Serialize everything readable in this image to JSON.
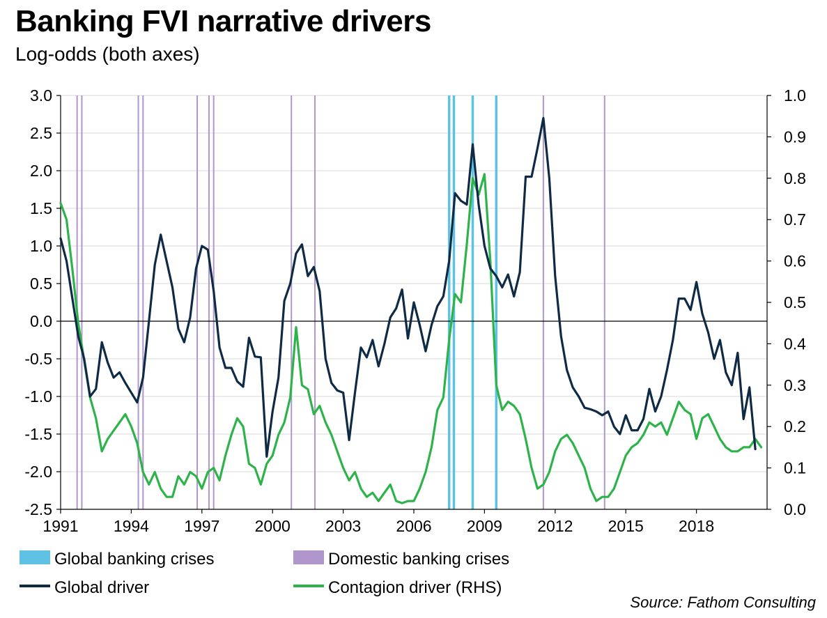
{
  "chart_data": {
    "type": "line",
    "title": "Banking FVI narrative drivers",
    "subtitle": "Log-odds (both axes)",
    "source": "Source: Fathom Consulting",
    "xlabel": "",
    "ylabel": "",
    "y_left": {
      "range": [
        -2.5,
        3.0
      ],
      "ticks": [
        "3.0",
        "2.5",
        "2.0",
        "1.5",
        "1.0",
        "0.5",
        "0.0",
        "-0.5",
        "-1.0",
        "-1.5",
        "-2.0",
        "-2.5"
      ]
    },
    "y_right": {
      "range": [
        0.0,
        1.0
      ],
      "ticks": [
        "1.0",
        "0.9",
        "0.8",
        "0.7",
        "0.6",
        "0.5",
        "0.4",
        "0.3",
        "0.2",
        "0.1",
        "0.0"
      ]
    },
    "x_range": [
      1991.0,
      2021.0
    ],
    "x_ticks": [
      "1991",
      "1994",
      "1997",
      "2000",
      "2003",
      "2006",
      "2009",
      "2012",
      "2015",
      "2018"
    ],
    "grid": "horizontal",
    "legend_position": "bottom",
    "colors": {
      "global_driver": "#0f2a44",
      "contagion_driver": "#2db34a",
      "global_crises": "#5ec2e4",
      "domestic_crises": "#b196cc",
      "grid": "#d9d9d9"
    },
    "legend": {
      "global_crises": "Global banking crises",
      "domestic_crises": "Domestic banking crises",
      "global_driver": "Global driver",
      "contagion_driver": "Contagion driver (RHS)"
    },
    "global_crises": [
      2007.5,
      2007.7,
      2008.5,
      2009.5
    ],
    "domestic_crises": [
      1991.7,
      1991.9,
      1994.3,
      1994.5,
      1996.8,
      1997.3,
      1997.5,
      2000.8,
      2001.8,
      2011.5,
      2014.1
    ],
    "series": [
      {
        "name": "Global driver",
        "axis": "left",
        "points": [
          [
            1991.0,
            1.1
          ],
          [
            1991.25,
            0.8
          ],
          [
            1991.5,
            0.3
          ],
          [
            1991.75,
            -0.2
          ],
          [
            1992.0,
            -0.5
          ],
          [
            1992.25,
            -1.0
          ],
          [
            1992.5,
            -0.9
          ],
          [
            1992.75,
            -0.28
          ],
          [
            1993.0,
            -0.55
          ],
          [
            1993.25,
            -0.75
          ],
          [
            1993.5,
            -0.68
          ],
          [
            1993.75,
            -0.82
          ],
          [
            1994.0,
            -0.95
          ],
          [
            1994.25,
            -1.08
          ],
          [
            1994.5,
            -0.75
          ],
          [
            1994.75,
            0.0
          ],
          [
            1995.0,
            0.75
          ],
          [
            1995.25,
            1.15
          ],
          [
            1995.5,
            0.8
          ],
          [
            1995.75,
            0.45
          ],
          [
            1996.0,
            -0.1
          ],
          [
            1996.25,
            -0.28
          ],
          [
            1996.5,
            0.05
          ],
          [
            1996.75,
            0.7
          ],
          [
            1997.0,
            1.0
          ],
          [
            1997.25,
            0.95
          ],
          [
            1997.5,
            0.4
          ],
          [
            1997.75,
            -0.35
          ],
          [
            1998.0,
            -0.62
          ],
          [
            1998.25,
            -0.62
          ],
          [
            1998.5,
            -0.8
          ],
          [
            1998.75,
            -0.87
          ],
          [
            1999.0,
            -0.22
          ],
          [
            1999.25,
            -0.47
          ],
          [
            1999.5,
            -0.48
          ],
          [
            1999.75,
            -1.8
          ],
          [
            2000.0,
            -1.2
          ],
          [
            2000.25,
            -0.75
          ],
          [
            2000.5,
            0.27
          ],
          [
            2000.75,
            0.5
          ],
          [
            2001.0,
            0.9
          ],
          [
            2001.25,
            1.02
          ],
          [
            2001.5,
            0.6
          ],
          [
            2001.75,
            0.72
          ],
          [
            2002.0,
            0.4
          ],
          [
            2002.25,
            -0.5
          ],
          [
            2002.5,
            -0.82
          ],
          [
            2002.75,
            -0.92
          ],
          [
            2003.0,
            -0.95
          ],
          [
            2003.25,
            -1.58
          ],
          [
            2003.5,
            -0.95
          ],
          [
            2003.75,
            -0.35
          ],
          [
            2004.0,
            -0.48
          ],
          [
            2004.25,
            -0.25
          ],
          [
            2004.5,
            -0.6
          ],
          [
            2004.75,
            -0.3
          ],
          [
            2005.0,
            0.05
          ],
          [
            2005.25,
            0.17
          ],
          [
            2005.5,
            0.42
          ],
          [
            2005.75,
            -0.23
          ],
          [
            2006.0,
            0.25
          ],
          [
            2006.25,
            -0.05
          ],
          [
            2006.5,
            -0.4
          ],
          [
            2006.75,
            -0.05
          ],
          [
            2007.0,
            0.2
          ],
          [
            2007.25,
            0.33
          ],
          [
            2007.5,
            0.8
          ],
          [
            2007.75,
            1.7
          ],
          [
            2008.0,
            1.6
          ],
          [
            2008.25,
            1.55
          ],
          [
            2008.5,
            2.35
          ],
          [
            2008.75,
            1.55
          ],
          [
            2009.0,
            1.0
          ],
          [
            2009.25,
            0.7
          ],
          [
            2009.5,
            0.6
          ],
          [
            2009.75,
            0.45
          ],
          [
            2010.0,
            0.62
          ],
          [
            2010.25,
            0.33
          ],
          [
            2010.5,
            0.65
          ],
          [
            2010.75,
            1.92
          ],
          [
            2011.0,
            1.92
          ],
          [
            2011.25,
            2.3
          ],
          [
            2011.5,
            2.7
          ],
          [
            2011.75,
            1.9
          ],
          [
            2012.0,
            0.6
          ],
          [
            2012.25,
            -0.2
          ],
          [
            2012.5,
            -0.65
          ],
          [
            2012.75,
            -0.88
          ],
          [
            2013.0,
            -1.0
          ],
          [
            2013.25,
            -1.15
          ],
          [
            2013.5,
            -1.17
          ],
          [
            2013.75,
            -1.2
          ],
          [
            2014.0,
            -1.25
          ],
          [
            2014.25,
            -1.2
          ],
          [
            2014.5,
            -1.4
          ],
          [
            2014.75,
            -1.5
          ],
          [
            2015.0,
            -1.25
          ],
          [
            2015.25,
            -1.45
          ],
          [
            2015.5,
            -1.45
          ],
          [
            2015.75,
            -1.3
          ],
          [
            2016.0,
            -0.9
          ],
          [
            2016.25,
            -1.2
          ],
          [
            2016.5,
            -1.0
          ],
          [
            2016.75,
            -0.65
          ],
          [
            2017.0,
            -0.25
          ],
          [
            2017.25,
            0.3
          ],
          [
            2017.5,
            0.3
          ],
          [
            2017.75,
            0.15
          ],
          [
            2018.0,
            0.52
          ],
          [
            2018.25,
            0.1
          ],
          [
            2018.5,
            -0.15
          ],
          [
            2018.75,
            -0.5
          ],
          [
            2019.0,
            -0.25
          ],
          [
            2019.25,
            -0.68
          ],
          [
            2019.5,
            -0.85
          ],
          [
            2019.75,
            -0.42
          ],
          [
            2020.0,
            -1.3
          ],
          [
            2020.25,
            -0.88
          ],
          [
            2020.5,
            -1.7
          ]
        ]
      },
      {
        "name": "Contagion driver (RHS)",
        "axis": "right",
        "points": [
          [
            1991.0,
            0.74
          ],
          [
            1991.25,
            0.7
          ],
          [
            1991.5,
            0.58
          ],
          [
            1991.75,
            0.45
          ],
          [
            1992.0,
            0.36
          ],
          [
            1992.25,
            0.27
          ],
          [
            1992.5,
            0.22
          ],
          [
            1992.75,
            0.14
          ],
          [
            1993.0,
            0.17
          ],
          [
            1993.25,
            0.19
          ],
          [
            1993.5,
            0.21
          ],
          [
            1993.75,
            0.23
          ],
          [
            1994.0,
            0.2
          ],
          [
            1994.25,
            0.16
          ],
          [
            1994.5,
            0.09
          ],
          [
            1994.75,
            0.06
          ],
          [
            1995.0,
            0.09
          ],
          [
            1995.25,
            0.05
          ],
          [
            1995.5,
            0.03
          ],
          [
            1995.75,
            0.03
          ],
          [
            1996.0,
            0.08
          ],
          [
            1996.25,
            0.06
          ],
          [
            1996.5,
            0.09
          ],
          [
            1996.75,
            0.08
          ],
          [
            1997.0,
            0.05
          ],
          [
            1997.25,
            0.09
          ],
          [
            1997.5,
            0.1
          ],
          [
            1997.75,
            0.07
          ],
          [
            1998.0,
            0.13
          ],
          [
            1998.25,
            0.18
          ],
          [
            1998.5,
            0.22
          ],
          [
            1998.75,
            0.2
          ],
          [
            1999.0,
            0.11
          ],
          [
            1999.25,
            0.1
          ],
          [
            1999.5,
            0.06
          ],
          [
            1999.75,
            0.11
          ],
          [
            2000.0,
            0.13
          ],
          [
            2000.25,
            0.18
          ],
          [
            2000.5,
            0.21
          ],
          [
            2000.75,
            0.27
          ],
          [
            2001.0,
            0.44
          ],
          [
            2001.25,
            0.3
          ],
          [
            2001.5,
            0.29
          ],
          [
            2001.75,
            0.23
          ],
          [
            2002.0,
            0.25
          ],
          [
            2002.25,
            0.21
          ],
          [
            2002.5,
            0.18
          ],
          [
            2002.75,
            0.14
          ],
          [
            2003.0,
            0.1
          ],
          [
            2003.25,
            0.07
          ],
          [
            2003.5,
            0.09
          ],
          [
            2003.75,
            0.05
          ],
          [
            2004.0,
            0.03
          ],
          [
            2004.25,
            0.04
          ],
          [
            2004.5,
            0.02
          ],
          [
            2004.75,
            0.04
          ],
          [
            2005.0,
            0.06
          ],
          [
            2005.25,
            0.02
          ],
          [
            2005.5,
            0.015
          ],
          [
            2005.75,
            0.02
          ],
          [
            2006.0,
            0.02
          ],
          [
            2006.25,
            0.05
          ],
          [
            2006.5,
            0.09
          ],
          [
            2006.75,
            0.15
          ],
          [
            2007.0,
            0.24
          ],
          [
            2007.25,
            0.27
          ],
          [
            2007.5,
            0.41
          ],
          [
            2007.75,
            0.52
          ],
          [
            2008.0,
            0.5
          ],
          [
            2008.25,
            0.64
          ],
          [
            2008.5,
            0.8
          ],
          [
            2008.75,
            0.76
          ],
          [
            2009.0,
            0.81
          ],
          [
            2009.25,
            0.6
          ],
          [
            2009.5,
            0.3
          ],
          [
            2009.75,
            0.24
          ],
          [
            2010.0,
            0.26
          ],
          [
            2010.25,
            0.25
          ],
          [
            2010.5,
            0.23
          ],
          [
            2010.75,
            0.17
          ],
          [
            2011.0,
            0.1
          ],
          [
            2011.25,
            0.05
          ],
          [
            2011.5,
            0.06
          ],
          [
            2011.75,
            0.09
          ],
          [
            2012.0,
            0.14
          ],
          [
            2012.25,
            0.17
          ],
          [
            2012.5,
            0.18
          ],
          [
            2012.75,
            0.16
          ],
          [
            2013.0,
            0.13
          ],
          [
            2013.25,
            0.1
          ],
          [
            2013.5,
            0.05
          ],
          [
            2013.75,
            0.02
          ],
          [
            2014.0,
            0.03
          ],
          [
            2014.25,
            0.03
          ],
          [
            2014.5,
            0.05
          ],
          [
            2014.75,
            0.09
          ],
          [
            2015.0,
            0.13
          ],
          [
            2015.25,
            0.15
          ],
          [
            2015.5,
            0.16
          ],
          [
            2015.75,
            0.18
          ],
          [
            2016.0,
            0.21
          ],
          [
            2016.25,
            0.2
          ],
          [
            2016.5,
            0.21
          ],
          [
            2016.75,
            0.18
          ],
          [
            2017.0,
            0.22
          ],
          [
            2017.25,
            0.26
          ],
          [
            2017.5,
            0.24
          ],
          [
            2017.75,
            0.23
          ],
          [
            2018.0,
            0.17
          ],
          [
            2018.25,
            0.22
          ],
          [
            2018.5,
            0.23
          ],
          [
            2018.75,
            0.2
          ],
          [
            2019.0,
            0.17
          ],
          [
            2019.25,
            0.15
          ],
          [
            2019.5,
            0.14
          ],
          [
            2019.75,
            0.14
          ],
          [
            2020.0,
            0.15
          ],
          [
            2020.25,
            0.15
          ],
          [
            2020.5,
            0.17
          ],
          [
            2020.75,
            0.15
          ]
        ]
      }
    ]
  }
}
